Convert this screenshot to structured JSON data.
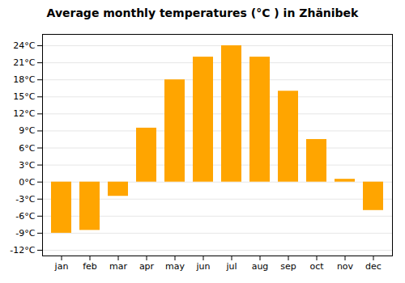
{
  "chart_data": {
    "type": "bar",
    "title": "Average monthly temperatures (°C ) in Zhänibek",
    "categories": [
      "jan",
      "feb",
      "mar",
      "apr",
      "may",
      "jun",
      "jul",
      "aug",
      "sep",
      "oct",
      "nov",
      "dec"
    ],
    "values": [
      -9,
      -8.5,
      -2.5,
      9.5,
      18,
      22,
      24,
      22,
      16,
      7.5,
      0.5,
      -5
    ],
    "color": "#FFA500",
    "ylim": [
      -13,
      26
    ],
    "yticks": [
      {
        "value": -12,
        "label": "-12°C"
      },
      {
        "value": -9,
        "label": "-9°C"
      },
      {
        "value": -6,
        "label": "-6°C"
      },
      {
        "value": -3,
        "label": "-3°C"
      },
      {
        "value": 0,
        "label": "0°C"
      },
      {
        "value": 3,
        "label": "3°C"
      },
      {
        "value": 6,
        "label": "6°C"
      },
      {
        "value": 9,
        "label": "9°C"
      },
      {
        "value": 12,
        "label": "12°C"
      },
      {
        "value": 15,
        "label": "15°C"
      },
      {
        "value": 18,
        "label": "18°C"
      },
      {
        "value": 21,
        "label": "21°C"
      },
      {
        "value": 24,
        "label": "24°C"
      }
    ],
    "grid": true
  }
}
